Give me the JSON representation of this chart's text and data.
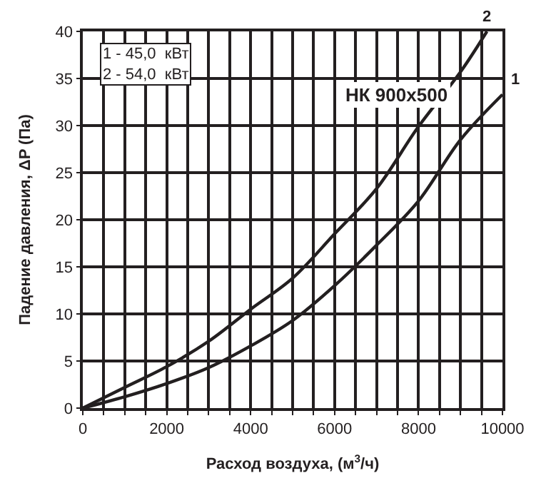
{
  "chart_data": {
    "type": "line",
    "xlabel": "Расход воздуха, (м$^{3}$/ч)",
    "ylabel": "Падение давления, ΔP (Па)",
    "x": [
      0,
      1000,
      2000,
      3000,
      4000,
      5000,
      6000,
      7000,
      8000,
      9000,
      10000
    ],
    "series": [
      {
        "name": "1",
        "color": "#231f20",
        "values": [
          0,
          1.2,
          2.6,
          4.3,
          6.6,
          9.3,
          13.0,
          17.3,
          22.0,
          28.5,
          33.3
        ]
      },
      {
        "name": "2",
        "color": "#231f20",
        "x": [
          0,
          1000,
          2000,
          3000,
          4000,
          5000,
          6000,
          7000,
          8000,
          9000,
          9630
        ],
        "values": [
          0,
          2.2,
          4.4,
          7.1,
          10.5,
          13.8,
          18.5,
          23.3,
          29.9,
          35.7,
          40
        ]
      }
    ],
    "annotations": [
      "1 - 45,0  кВт\n2 - 54,0  кВт",
      "НК 900x500"
    ],
    "xlim": [
      0,
      10000
    ],
    "ylim": [
      0,
      40
    ],
    "xticks": [
      0,
      {
        "value": 500,
        "label": null
      },
      {
        "value": 1000,
        "label": null
      },
      {
        "value": 1500,
        "label": null
      },
      2000,
      {
        "value": 2500,
        "label": null
      },
      {
        "value": 3000,
        "label": null
      },
      {
        "value": 3500,
        "label": null
      },
      4000,
      {
        "value": 4500,
        "label": null
      },
      {
        "value": 5000,
        "label": null
      },
      {
        "value": 5500,
        "label": null
      },
      6000,
      {
        "value": 6500,
        "label": null
      },
      {
        "value": 7000,
        "label": null
      },
      {
        "value": 7500,
        "label": null
      },
      8000,
      {
        "value": 8500,
        "label": null
      },
      {
        "value": 9000,
        "label": null
      },
      {
        "value": 9500,
        "label": null
      },
      10000
    ],
    "yticks": [
      0,
      5,
      10,
      15,
      20,
      25,
      30,
      35,
      40
    ],
    "grid": true,
    "legend": false,
    "marker": "none",
    "line_style": "solid"
  }
}
